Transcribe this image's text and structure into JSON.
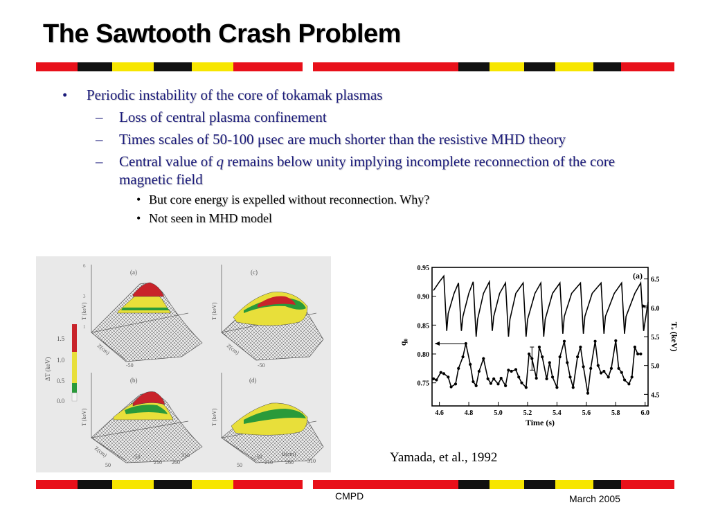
{
  "slide": {
    "title": "The Sawtooth Crash Problem",
    "bullets": [
      {
        "marker": "•",
        "text": "Periodic instability of the core of tokamak plasmas"
      },
      {
        "marker": "–",
        "text": "Loss of central plasma confinement"
      },
      {
        "marker": "–",
        "text": "Times scales of  50-100 μsec are much shorter than the resistive MHD theory"
      },
      {
        "marker": "–",
        "text_before": "Central value of ",
        "italic": "q",
        "text_after": " remains below unity implying incomplete reconnection of the core magnetic field"
      },
      {
        "marker": "•",
        "text": "But core energy is expelled without reconnection. Why?"
      },
      {
        "marker": "•",
        "text": "Not seen in MHD model"
      }
    ],
    "caption": "Yamada, et al., 1992",
    "footer_center": "CMPD",
    "footer_right": "March 2005"
  },
  "colors": {
    "red": "#e8101a",
    "yellow": "#f7e600",
    "black": "#111111"
  },
  "surface_figure": {
    "panels": [
      "(a)",
      "(c)",
      "(b)",
      "(d)"
    ],
    "axis_te": "T (keV)",
    "axis_z": "Z(cm)",
    "axis_r": "R(cm)",
    "r_ticks": [
      "210",
      "260",
      "310"
    ],
    "z_ticks": [
      "-50",
      "50"
    ],
    "te_ticks": [
      "1",
      "2",
      "3",
      "4",
      "5",
      "6"
    ],
    "colorbar_label": "ΔT (keV)",
    "colorbar_ticks": [
      "1.5",
      "1.0",
      "0.5",
      "0.0"
    ]
  },
  "chart_data": {
    "type": "line",
    "panel_label": "(a)",
    "xlabel": "Time (s)",
    "ylabel_left": "q₀",
    "ylabel_right": "Tₑ (keV)",
    "xlim": [
      4.55,
      6.02
    ],
    "ylim_left": [
      0.71,
      0.95
    ],
    "ylim_right": [
      4.3,
      6.7
    ],
    "x_ticks": [
      "4.6",
      "4.8",
      "5.0",
      "5.2",
      "5.4",
      "5.6",
      "5.8",
      "6.0"
    ],
    "y_ticks_left": [
      "0.75",
      "0.80",
      "0.85",
      "0.90",
      "0.95"
    ],
    "y_ticks_right": [
      "4.5",
      "5.0",
      "5.5",
      "6.0",
      "6.5"
    ],
    "series": [
      {
        "axis": "right",
        "points": [
          [
            4.56,
            6.3
          ],
          [
            4.6,
            6.45
          ],
          [
            4.63,
            6.55
          ],
          [
            4.65,
            5.6
          ],
          [
            4.66,
            5.9
          ],
          [
            4.7,
            6.25
          ],
          [
            4.73,
            6.43
          ],
          [
            4.75,
            5.6
          ],
          [
            4.76,
            5.85
          ],
          [
            4.8,
            6.25
          ],
          [
            4.83,
            6.45
          ],
          [
            4.85,
            5.5
          ],
          [
            4.86,
            5.8
          ],
          [
            4.9,
            6.25
          ],
          [
            4.94,
            6.45
          ],
          [
            4.96,
            5.6
          ],
          [
            4.97,
            5.85
          ],
          [
            5.01,
            6.25
          ],
          [
            5.05,
            6.43
          ],
          [
            5.07,
            5.5
          ],
          [
            5.08,
            5.8
          ],
          [
            5.12,
            6.25
          ],
          [
            5.17,
            6.43
          ],
          [
            5.19,
            5.5
          ],
          [
            5.2,
            5.8
          ],
          [
            5.25,
            6.25
          ],
          [
            5.29,
            6.43
          ],
          [
            5.31,
            5.5
          ],
          [
            5.32,
            5.8
          ],
          [
            5.37,
            6.25
          ],
          [
            5.42,
            6.43
          ],
          [
            5.44,
            5.55
          ],
          [
            5.45,
            5.85
          ],
          [
            5.5,
            6.25
          ],
          [
            5.56,
            6.43
          ],
          [
            5.58,
            5.55
          ],
          [
            5.59,
            5.85
          ],
          [
            5.64,
            6.25
          ],
          [
            5.7,
            6.43
          ],
          [
            5.72,
            5.55
          ],
          [
            5.73,
            5.85
          ],
          [
            5.79,
            6.25
          ],
          [
            5.84,
            6.43
          ],
          [
            5.86,
            5.55
          ],
          [
            5.87,
            5.85
          ],
          [
            5.93,
            6.25
          ],
          [
            5.97,
            6.43
          ],
          [
            5.99,
            5.6
          ],
          [
            6.02,
            6.1
          ]
        ]
      },
      {
        "axis": "left",
        "points": [
          [
            4.56,
            0.757
          ],
          [
            4.58,
            0.755
          ],
          [
            4.61,
            0.768
          ],
          [
            4.63,
            0.766
          ],
          [
            4.66,
            0.76
          ],
          [
            4.68,
            0.743
          ],
          [
            4.71,
            0.748
          ],
          [
            4.73,
            0.775
          ],
          [
            4.76,
            0.795
          ],
          [
            4.78,
            0.818
          ],
          [
            4.81,
            0.782
          ],
          [
            4.83,
            0.752
          ],
          [
            4.85,
            0.745
          ],
          [
            4.87,
            0.77
          ],
          [
            4.9,
            0.792
          ],
          [
            4.93,
            0.757
          ],
          [
            4.95,
            0.749
          ],
          [
            4.97,
            0.757
          ],
          [
            5.0,
            0.748
          ],
          [
            5.02,
            0.758
          ],
          [
            5.05,
            0.745
          ],
          [
            5.07,
            0.772
          ],
          [
            5.09,
            0.77
          ],
          [
            5.12,
            0.773
          ],
          [
            5.14,
            0.76
          ],
          [
            5.16,
            0.75
          ],
          [
            5.19,
            0.742
          ],
          [
            5.21,
            0.8
          ],
          [
            5.23,
            0.792
          ],
          [
            5.26,
            0.758
          ],
          [
            5.28,
            0.812
          ],
          [
            5.3,
            0.795
          ],
          [
            5.33,
            0.757
          ],
          [
            5.35,
            0.785
          ],
          [
            5.37,
            0.76
          ],
          [
            5.4,
            0.742
          ],
          [
            5.42,
            0.795
          ],
          [
            5.45,
            0.822
          ],
          [
            5.47,
            0.785
          ],
          [
            5.49,
            0.76
          ],
          [
            5.51,
            0.742
          ],
          [
            5.54,
            0.795
          ],
          [
            5.56,
            0.812
          ],
          [
            5.58,
            0.778
          ],
          [
            5.61,
            0.732
          ],
          [
            5.63,
            0.775
          ],
          [
            5.66,
            0.822
          ],
          [
            5.68,
            0.78
          ],
          [
            5.7,
            0.767
          ],
          [
            5.72,
            0.77
          ],
          [
            5.75,
            0.76
          ],
          [
            5.77,
            0.775
          ],
          [
            5.8,
            0.823
          ],
          [
            5.82,
            0.775
          ],
          [
            5.84,
            0.768
          ],
          [
            5.86,
            0.755
          ],
          [
            5.89,
            0.748
          ],
          [
            5.91,
            0.76
          ],
          [
            5.93,
            0.812
          ],
          [
            5.95,
            0.8
          ],
          [
            5.97,
            0.8
          ]
        ]
      }
    ]
  }
}
